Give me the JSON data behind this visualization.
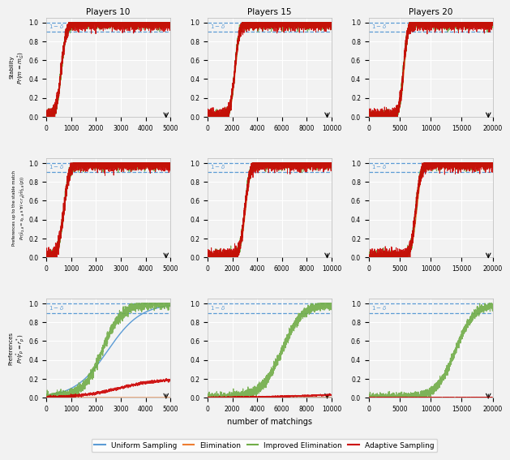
{
  "titles": [
    "Players 10",
    "Players 15",
    "Players 20"
  ],
  "row_ylabels": [
    "Stability\n$Pr(m = m_G^*)$",
    "Preferences up to the stable match\n$Pr(\\hat{s}_{2,\\delta}=s_{2,\\delta}\\wedge\\forall i<r_p|\\hat{m}^i_{2,\\delta}(p))$",
    "Preferences\n$Pr(\\hat{r}_p=r_p^*)$"
  ],
  "x_max": [
    5000,
    10000,
    20000
  ],
  "x_ticks": [
    [
      0,
      1000,
      2000,
      3000,
      4000,
      5000
    ],
    [
      0,
      2000,
      4000,
      6000,
      8000,
      10000
    ],
    [
      0,
      5000,
      10000,
      15000,
      20000
    ]
  ],
  "delta": 0.1,
  "colors": {
    "uniform": "#5B9BD5",
    "elimination": "#ED7D31",
    "improved": "#70AD47",
    "adaptive": "#CC0000"
  },
  "legend_labels": [
    "Uniform Sampling",
    "Elimination",
    "Improved Elimination",
    "Adaptive Sampling"
  ],
  "xlabel": "number of matchings",
  "bg_color": "#F2F2F2",
  "grid_color": "#FFFFFF",
  "fig_width": 6.4,
  "fig_height": 5.71,
  "noise_seed": 123
}
